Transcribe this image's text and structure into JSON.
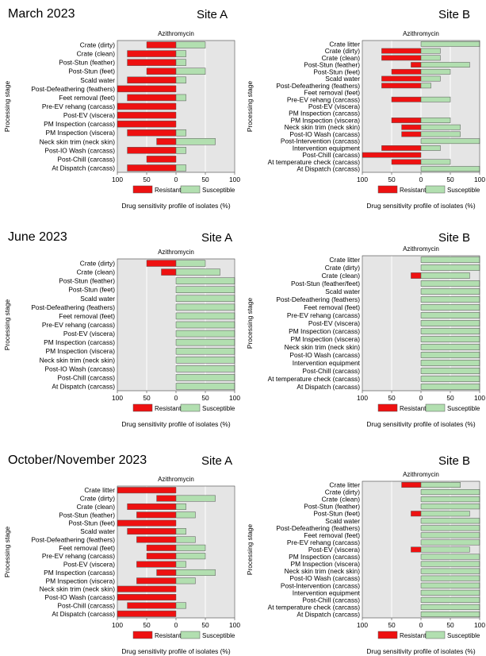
{
  "periods": [
    {
      "label": "March 2023",
      "site_a": "Site A",
      "site_b": "Site B"
    },
    {
      "label": "June 2023",
      "site_a": "Site A",
      "site_b": "Site B"
    },
    {
      "label": "October/November 2023",
      "site_a": "Site A",
      "site_b": "Site B"
    }
  ],
  "colors": {
    "resistant": "#ee1111",
    "susceptible": "#b2dfb0",
    "plot_bg": "#e5e5e5",
    "grid": "#ffffff"
  },
  "chart_data": [
    {
      "type": "bar",
      "orientation": "diverging-horizontal",
      "period": "March 2023",
      "site": "Site A",
      "title": "Azithromycin",
      "ylabel": "Processing stage",
      "xlabel": "Drug sensitivity profile of isolates (%)",
      "xlim": [
        -100,
        100
      ],
      "xticks": [
        "100",
        "50",
        "0",
        "50",
        "100"
      ],
      "legend": [
        "Resistant",
        "Susceptible"
      ],
      "legend_position": "bottom",
      "categories": [
        "Crate (dirty)",
        "Crate (clean)",
        "Post-Stun (feather)",
        "Post-Stun (feet)",
        "Scald water",
        "Post-Defeathering (feathers)",
        "Feet removal (feet)",
        "Pre-EV rehang (carcass)",
        "Post-EV (viscera)",
        "PM Inspection (carcass)",
        "PM Inspection (viscera)",
        "Neck skin trim (neck skin)",
        "Post-IO Wash (carcass)",
        "Post-Chill (carcass)",
        "At Dispatch (carcass)"
      ],
      "series": [
        {
          "name": "Resistant",
          "values": [
            50,
            83,
            83,
            50,
            83,
            100,
            83,
            100,
            100,
            100,
            83,
            33,
            83,
            50,
            83
          ]
        },
        {
          "name": "Susceptible",
          "values": [
            50,
            17,
            17,
            50,
            17,
            0,
            17,
            0,
            0,
            0,
            17,
            67,
            17,
            0,
            17
          ]
        }
      ]
    },
    {
      "type": "bar",
      "orientation": "diverging-horizontal",
      "period": "March 2023",
      "site": "Site B",
      "title": "Azithromycin",
      "ylabel": "Processing stage",
      "xlabel": "Drug sensitivity profile of isolates (%)",
      "xlim": [
        -100,
        100
      ],
      "xticks": [
        "100",
        "50",
        "0",
        "50",
        "100"
      ],
      "legend": [
        "Resistant",
        "Susceptible"
      ],
      "legend_position": "bottom",
      "categories": [
        "Crate litter",
        "Crate (dirty)",
        "Crate (clean)",
        "Post-Stun (feather)",
        "Post-Stun (feet)",
        "Scald water",
        "Post-Defeathering (feathers)",
        "Feet removal (feet)",
        "Pre-EV rehang (carcass)",
        "Post-EV (viscera)",
        "PM Inspection (carcass)",
        "PM Inspection (viscera)",
        "Neck skin trim (neck skin)",
        "Post-IO Wash (carcass)",
        "Post-Intervention (carcass)",
        "Intervention equipment",
        "Post-Chill (carcass)",
        "At temperature check (carcass)",
        "At Dispatch (carcass)"
      ],
      "series": [
        {
          "name": "Resistant",
          "values": [
            0,
            67,
            67,
            17,
            50,
            67,
            67,
            0,
            50,
            0,
            0,
            50,
            33,
            33,
            0,
            67,
            100,
            50,
            0
          ]
        },
        {
          "name": "Susceptible",
          "values": [
            100,
            33,
            33,
            83,
            50,
            33,
            17,
            0,
            50,
            0,
            0,
            50,
            67,
            67,
            100,
            33,
            0,
            50,
            100
          ]
        }
      ]
    },
    {
      "type": "bar",
      "orientation": "diverging-horizontal",
      "period": "June 2023",
      "site": "Site A",
      "title": "Azithromycin",
      "ylabel": "Processing stage",
      "xlabel": "Drug sensitivity profile of isolates (%)",
      "xlim": [
        -100,
        100
      ],
      "xticks": [
        "100",
        "50",
        "0",
        "50",
        "100"
      ],
      "legend": [
        "Resistant",
        "Susceptible"
      ],
      "legend_position": "bottom",
      "categories": [
        "Crate (dirty)",
        "Crate (clean)",
        "Post-Stun (feather)",
        "Post-Stun (feet)",
        "Scald water",
        "Post-Defeathering (feathers)",
        "Feet removal (feet)",
        "Pre-EV rehang (carcass)",
        "Post-EV (viscera)",
        "PM Inspection (carcass)",
        "PM Inspection (viscera)",
        "Neck skin trim (neck skin)",
        "Post-IO Wash (carcass)",
        "Post-Chill (carcass)",
        "At Dispatch (carcass)"
      ],
      "series": [
        {
          "name": "Resistant",
          "values": [
            50,
            25,
            0,
            0,
            0,
            0,
            0,
            0,
            0,
            0,
            0,
            0,
            0,
            0,
            0
          ]
        },
        {
          "name": "Susceptible",
          "values": [
            50,
            75,
            100,
            100,
            100,
            100,
            100,
            100,
            100,
            100,
            100,
            100,
            100,
            100,
            100
          ]
        }
      ]
    },
    {
      "type": "bar",
      "orientation": "diverging-horizontal",
      "period": "June 2023",
      "site": "Site B",
      "title": "Azithromycin",
      "ylabel": "Processing stage",
      "xlabel": "Drug sensitivity profile of isolates (%)",
      "xlim": [
        -100,
        100
      ],
      "xticks": [
        "100",
        "50",
        "0",
        "50",
        "100"
      ],
      "legend": [
        "Resistant",
        "Susceptible"
      ],
      "legend_position": "bottom",
      "categories": [
        "Crate litter",
        "Crate (dirty)",
        "Crate (clean)",
        "Post-Stun (feather/feet)",
        "Scald water",
        "Post-Defeathering (feathers)",
        "Feet removal (feet)",
        "Pre-EV rehang (carcass)",
        "Post-EV (viscera)",
        "PM Inspection (carcass)",
        "PM Inspection (viscera)",
        "Neck skin trim (neck skin)",
        "Post-IO Wash (carcass)",
        "Intervention equipment",
        "Post-Chill (carcass)",
        "At temperature check (carcass)",
        "At Dispatch (carcass)"
      ],
      "series": [
        {
          "name": "Resistant",
          "values": [
            0,
            0,
            17,
            0,
            0,
            0,
            0,
            0,
            0,
            0,
            0,
            0,
            0,
            0,
            0,
            0,
            0
          ]
        },
        {
          "name": "Susceptible",
          "values": [
            100,
            100,
            83,
            100,
            100,
            100,
            100,
            100,
            100,
            100,
            100,
            100,
            100,
            100,
            100,
            100,
            100
          ]
        }
      ]
    },
    {
      "type": "bar",
      "orientation": "diverging-horizontal",
      "period": "October/November 2023",
      "site": "Site A",
      "title": "Azithromycin",
      "ylabel": "Processing stage",
      "xlabel": "Drug sensitivity profile of isolates (%)",
      "xlim": [
        -100,
        100
      ],
      "xticks": [
        "100",
        "50",
        "0",
        "50",
        "100"
      ],
      "legend": [
        "Resistant",
        "Susceptible"
      ],
      "legend_position": "bottom",
      "categories": [
        "Crate litter",
        "Crate (dirty)",
        "Crate (clean)",
        "Post-Stun (feather)",
        "Post-Stun (feet)",
        "Scald water",
        "Post-Defeathering (feathers)",
        "Feet removal (feet)",
        "Pre-EV rehang (carcass)",
        "Post-EV (viscera)",
        "PM Inspection (carcass)",
        "PM Inspection (viscera)",
        "Neck skin trim (neck skin)",
        "Post-IO Wash (carcass)",
        "Post-Chill (carcass)",
        "At Dispatch (carcass)"
      ],
      "series": [
        {
          "name": "Resistant",
          "values": [
            100,
            33,
            83,
            67,
            100,
            83,
            67,
            50,
            50,
            67,
            33,
            67,
            100,
            100,
            83,
            100
          ]
        },
        {
          "name": "Susceptible",
          "values": [
            0,
            67,
            17,
            33,
            0,
            17,
            33,
            50,
            50,
            17,
            67,
            33,
            0,
            0,
            17,
            0
          ]
        }
      ]
    },
    {
      "type": "bar",
      "orientation": "diverging-horizontal",
      "period": "October/November 2023",
      "site": "Site B",
      "title": "Azithromycin",
      "ylabel": "Processing stage",
      "xlabel": "Drug sensitivity profile of isolates (%)",
      "xlim": [
        -100,
        100
      ],
      "xticks": [
        "100",
        "50",
        "0",
        "50",
        "100"
      ],
      "legend": [
        "Resistant",
        "Susceptible"
      ],
      "legend_position": "bottom",
      "categories": [
        "Crate litter",
        "Crate (dirty)",
        "Crate (clean)",
        "Post-Stun (feather)",
        "Post-Stun (feet)",
        "Scald water",
        "Post-Defeathering (feathers)",
        "Feet removal (feet)",
        "Pre-EV rehang (carcass)",
        "Post-EV (viscera)",
        "PM Inspection (carcass)",
        "PM Inspection (viscera)",
        "Neck skin trim (neck skin)",
        "Post-IO Wash (carcass)",
        "Post-Intervention (carcass)",
        "Intervention equipment",
        "Post-Chill (carcass)",
        "At temperature check (carcass)",
        "At Dispatch (carcass)"
      ],
      "series": [
        {
          "name": "Resistant",
          "values": [
            33,
            0,
            0,
            0,
            17,
            0,
            0,
            0,
            0,
            17,
            0,
            0,
            0,
            0,
            0,
            0,
            0,
            0,
            0
          ]
        },
        {
          "name": "Susceptible",
          "values": [
            67,
            100,
            100,
            100,
            83,
            100,
            100,
            100,
            100,
            83,
            100,
            100,
            100,
            100,
            100,
            100,
            100,
            100,
            100
          ]
        }
      ]
    }
  ]
}
